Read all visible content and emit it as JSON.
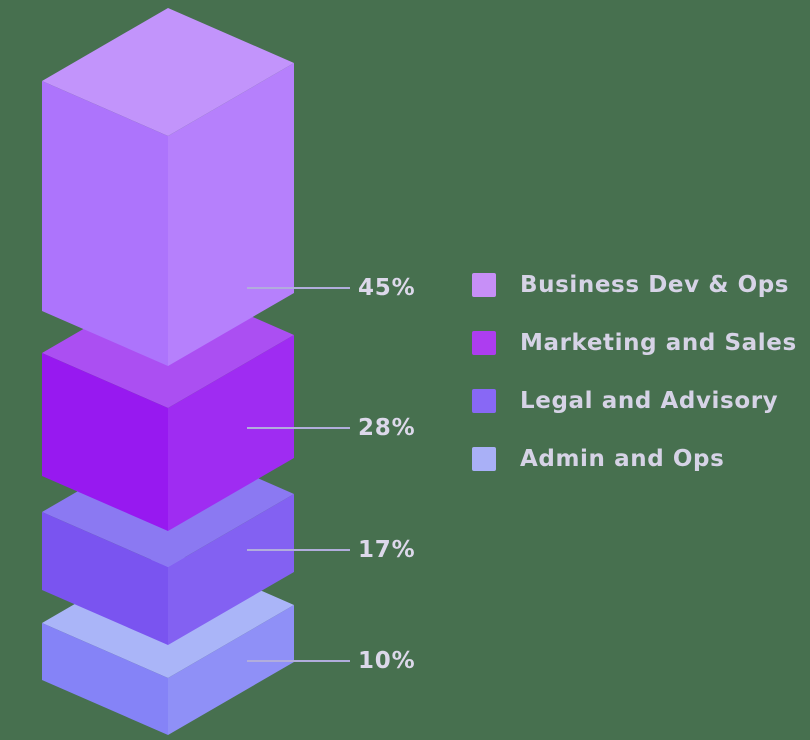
{
  "background_color": "#47704f",
  "chart_data": {
    "type": "bar",
    "variant": "isometric-3d-exploded-stack",
    "title": "",
    "unit": "%",
    "total": 100,
    "categories": [
      "Business Dev & Ops",
      "Marketing and Sales",
      "Legal and Advisory",
      "Admin and Ops"
    ],
    "values": [
      45,
      28,
      17,
      10
    ],
    "segments": [
      {
        "label": "Business Dev & Ops",
        "value": 45,
        "percent_label": "45%",
        "color_top": "#c294fb",
        "color_left": "#ad74fc",
        "color_right": "#b680fc",
        "legend_color": "#c78ff7"
      },
      {
        "label": "Marketing and Sales",
        "value": 28,
        "percent_label": "28%",
        "color_top": "#ab4ff2",
        "color_left": "#9719f0",
        "color_right": "#9f2cf2",
        "legend_color": "#ad3df0"
      },
      {
        "label": "Legal and Advisory",
        "value": 17,
        "percent_label": "17%",
        "color_top": "#8b79f2",
        "color_left": "#7a54f0",
        "color_right": "#8361f2",
        "legend_color": "#8868f5"
      },
      {
        "label": "Admin and Ops",
        "value": 10,
        "percent_label": "10%",
        "color_top": "#aab5f8",
        "color_left": "#8583f7",
        "color_right": "#8f90f7",
        "legend_color": "#a9b0f7"
      }
    ],
    "callout_line_color": "#b1addc",
    "label_text_color": "#dcd8ea",
    "legend_text_color": "#d6d3e6",
    "legend_position": "right",
    "grid": false
  }
}
